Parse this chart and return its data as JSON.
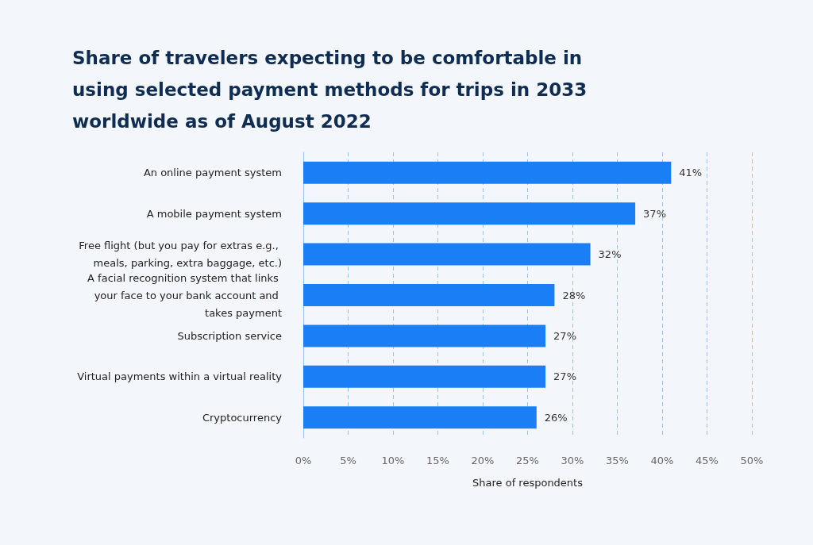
{
  "chart_data": {
    "type": "bar",
    "orientation": "horizontal",
    "title": "Share of travelers expecting to be comfortable in using selected payment methods for trips in 2033 worldwide as of August 2022",
    "categories": [
      "An online payment system",
      "A mobile payment system",
      "Free flight (but you pay for extras e.g., meals, parking, extra baggage, etc.)",
      "A facial recognition system that links your face to your bank account and takes payment",
      "Subscription service",
      "Virtual payments within a virtual reality",
      "Cryptocurrency"
    ],
    "values": [
      41,
      37,
      32,
      28,
      27,
      27,
      26
    ],
    "value_labels": [
      "41%",
      "37%",
      "32%",
      "28%",
      "27%",
      "27%",
      "26%"
    ],
    "color": "#1a7ef5",
    "xlabel": "Share of respondents",
    "xlim": [
      0,
      50
    ],
    "xticks": [
      {
        "value": 0,
        "label": "0%"
      },
      {
        "value": 5,
        "label": "5%"
      },
      {
        "value": 10,
        "label": "10%"
      },
      {
        "value": 15,
        "label": "15%"
      },
      {
        "value": 20,
        "label": "20%"
      },
      {
        "value": 25,
        "label": "25%"
      },
      {
        "value": 30,
        "label": "30%"
      },
      {
        "value": 35,
        "label": "35%"
      },
      {
        "value": 40,
        "label": "40%"
      },
      {
        "value": 45,
        "label": "45%"
      },
      {
        "value": 50,
        "label": "50%"
      }
    ],
    "grid": "x"
  }
}
